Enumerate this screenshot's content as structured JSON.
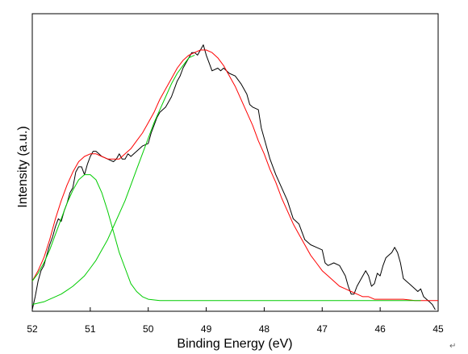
{
  "chart_data": {
    "type": "line",
    "title": "",
    "xlabel": "Binding Energy (eV)",
    "ylabel": "Intensity (a.u.)",
    "xlim": [
      52,
      45
    ],
    "x_reversed": true,
    "ylim": [
      0,
      1
    ],
    "y_ticks_shown": false,
    "grid": false,
    "legend": "none",
    "x_ticks": [
      "52",
      "51",
      "50",
      "49",
      "48",
      "47",
      "46",
      "45"
    ],
    "series": [
      {
        "color": "#000000",
        "points": [
          [
            52.0,
            0.0
          ],
          [
            51.95,
            0.05
          ],
          [
            51.9,
            0.11
          ],
          [
            51.85,
            0.15
          ],
          [
            51.8,
            0.17
          ],
          [
            51.75,
            0.21
          ],
          [
            51.7,
            0.25
          ],
          [
            51.65,
            0.28
          ],
          [
            51.6,
            0.32
          ],
          [
            51.55,
            0.35
          ],
          [
            51.5,
            0.34
          ],
          [
            51.45,
            0.38
          ],
          [
            51.4,
            0.41
          ],
          [
            51.35,
            0.45
          ],
          [
            51.3,
            0.47
          ],
          [
            51.25,
            0.53
          ],
          [
            51.2,
            0.55
          ],
          [
            51.15,
            0.55
          ],
          [
            51.1,
            0.52
          ],
          [
            51.05,
            0.56
          ],
          [
            51.0,
            0.59
          ],
          [
            50.95,
            0.61
          ],
          [
            50.9,
            0.61
          ],
          [
            50.85,
            0.6
          ],
          [
            50.8,
            0.59
          ],
          [
            50.7,
            0.58
          ],
          [
            50.6,
            0.57
          ],
          [
            50.55,
            0.58
          ],
          [
            50.5,
            0.6
          ],
          [
            50.45,
            0.58
          ],
          [
            50.4,
            0.58
          ],
          [
            50.35,
            0.6
          ],
          [
            50.3,
            0.59
          ],
          [
            50.2,
            0.61
          ],
          [
            50.1,
            0.63
          ],
          [
            50.0,
            0.64
          ],
          [
            49.95,
            0.68
          ],
          [
            49.9,
            0.71
          ],
          [
            49.85,
            0.74
          ],
          [
            49.8,
            0.76
          ],
          [
            49.7,
            0.78
          ],
          [
            49.6,
            0.82
          ],
          [
            49.5,
            0.88
          ],
          [
            49.45,
            0.9
          ],
          [
            49.4,
            0.93
          ],
          [
            49.3,
            0.97
          ],
          [
            49.25,
            0.99
          ],
          [
            49.2,
            0.99
          ],
          [
            49.15,
            0.98
          ],
          [
            49.1,
            1.0
          ],
          [
            49.05,
            1.02
          ],
          [
            49.0,
            0.98
          ],
          [
            48.95,
            0.95
          ],
          [
            48.9,
            0.92
          ],
          [
            48.8,
            0.93
          ],
          [
            48.75,
            0.92
          ],
          [
            48.7,
            0.93
          ],
          [
            48.65,
            0.92
          ],
          [
            48.6,
            0.91
          ],
          [
            48.5,
            0.9
          ],
          [
            48.4,
            0.87
          ],
          [
            48.3,
            0.83
          ],
          [
            48.25,
            0.79
          ],
          [
            48.2,
            0.78
          ],
          [
            48.1,
            0.77
          ],
          [
            48.05,
            0.7
          ],
          [
            48.0,
            0.66
          ],
          [
            47.95,
            0.62
          ],
          [
            47.9,
            0.58
          ],
          [
            47.8,
            0.52
          ],
          [
            47.7,
            0.47
          ],
          [
            47.6,
            0.42
          ],
          [
            47.5,
            0.35
          ],
          [
            47.4,
            0.33
          ],
          [
            47.35,
            0.3
          ],
          [
            47.3,
            0.27
          ],
          [
            47.2,
            0.25
          ],
          [
            47.1,
            0.24
          ],
          [
            47.0,
            0.23
          ],
          [
            46.95,
            0.18
          ],
          [
            46.9,
            0.17
          ],
          [
            46.8,
            0.18
          ],
          [
            46.7,
            0.17
          ],
          [
            46.6,
            0.13
          ],
          [
            46.55,
            0.09
          ],
          [
            46.5,
            0.06
          ],
          [
            46.45,
            0.06
          ],
          [
            46.4,
            0.09
          ],
          [
            46.3,
            0.13
          ],
          [
            46.25,
            0.15
          ],
          [
            46.2,
            0.13
          ],
          [
            46.15,
            0.09
          ],
          [
            46.1,
            0.1
          ],
          [
            46.05,
            0.14
          ],
          [
            46.0,
            0.13
          ],
          [
            45.95,
            0.17
          ],
          [
            45.9,
            0.2
          ],
          [
            45.85,
            0.21
          ],
          [
            45.8,
            0.22
          ],
          [
            45.75,
            0.24
          ],
          [
            45.7,
            0.22
          ],
          [
            45.65,
            0.18
          ],
          [
            45.6,
            0.12
          ],
          [
            45.55,
            0.11
          ],
          [
            45.5,
            0.1
          ],
          [
            45.45,
            0.09
          ],
          [
            45.4,
            0.08
          ],
          [
            45.35,
            0.07
          ],
          [
            45.3,
            0.08
          ],
          [
            45.25,
            0.05
          ],
          [
            45.2,
            0.04
          ],
          [
            45.15,
            0.03
          ],
          [
            45.1,
            0.02
          ],
          [
            45.05,
            0.0
          ]
        ]
      },
      {
        "color": "#ff0000",
        "points": [
          [
            52.0,
            0.11
          ],
          [
            51.9,
            0.15
          ],
          [
            51.8,
            0.2
          ],
          [
            51.7,
            0.27
          ],
          [
            51.6,
            0.35
          ],
          [
            51.5,
            0.42
          ],
          [
            51.4,
            0.48
          ],
          [
            51.3,
            0.53
          ],
          [
            51.2,
            0.57
          ],
          [
            51.1,
            0.59
          ],
          [
            51.0,
            0.6
          ],
          [
            50.9,
            0.6
          ],
          [
            50.8,
            0.59
          ],
          [
            50.7,
            0.58
          ],
          [
            50.6,
            0.58
          ],
          [
            50.5,
            0.58
          ],
          [
            50.4,
            0.6
          ],
          [
            50.3,
            0.62
          ],
          [
            50.2,
            0.65
          ],
          [
            50.1,
            0.68
          ],
          [
            50.0,
            0.72
          ],
          [
            49.9,
            0.76
          ],
          [
            49.8,
            0.81
          ],
          [
            49.7,
            0.85
          ],
          [
            49.6,
            0.89
          ],
          [
            49.5,
            0.93
          ],
          [
            49.4,
            0.96
          ],
          [
            49.3,
            0.98
          ],
          [
            49.2,
            0.99
          ],
          [
            49.1,
            1.0
          ],
          [
            49.0,
            1.0
          ],
          [
            48.9,
            0.99
          ],
          [
            48.8,
            0.97
          ],
          [
            48.7,
            0.94
          ],
          [
            48.6,
            0.9
          ],
          [
            48.5,
            0.86
          ],
          [
            48.4,
            0.81
          ],
          [
            48.3,
            0.76
          ],
          [
            48.2,
            0.71
          ],
          [
            48.1,
            0.65
          ],
          [
            48.0,
            0.6
          ],
          [
            47.9,
            0.54
          ],
          [
            47.8,
            0.49
          ],
          [
            47.7,
            0.43
          ],
          [
            47.6,
            0.38
          ],
          [
            47.5,
            0.33
          ],
          [
            47.4,
            0.29
          ],
          [
            47.3,
            0.25
          ],
          [
            47.2,
            0.21
          ],
          [
            47.1,
            0.18
          ],
          [
            47.0,
            0.15
          ],
          [
            46.9,
            0.13
          ],
          [
            46.8,
            0.11
          ],
          [
            46.7,
            0.09
          ],
          [
            46.6,
            0.08
          ],
          [
            46.5,
            0.07
          ],
          [
            46.4,
            0.06
          ],
          [
            46.3,
            0.05
          ],
          [
            46.2,
            0.05
          ],
          [
            46.1,
            0.04
          ],
          [
            46.0,
            0.04
          ],
          [
            45.8,
            0.04
          ],
          [
            45.6,
            0.04
          ],
          [
            45.4,
            0.035
          ],
          [
            45.2,
            0.035
          ],
          [
            45.0,
            0.035
          ]
        ]
      },
      {
        "color": "#00cc00",
        "points": [
          [
            52.0,
            0.11
          ],
          [
            51.9,
            0.14
          ],
          [
            51.8,
            0.18
          ],
          [
            51.7,
            0.23
          ],
          [
            51.6,
            0.29
          ],
          [
            51.5,
            0.35
          ],
          [
            51.4,
            0.41
          ],
          [
            51.3,
            0.46
          ],
          [
            51.2,
            0.5
          ],
          [
            51.1,
            0.52
          ],
          [
            51.0,
            0.52
          ],
          [
            50.9,
            0.5
          ],
          [
            50.8,
            0.45
          ],
          [
            50.7,
            0.38
          ],
          [
            50.6,
            0.3
          ],
          [
            50.5,
            0.22
          ],
          [
            50.4,
            0.16
          ],
          [
            50.3,
            0.1
          ],
          [
            50.2,
            0.07
          ],
          [
            50.1,
            0.05
          ],
          [
            50.0,
            0.04
          ],
          [
            49.8,
            0.035
          ],
          [
            49.5,
            0.035
          ],
          [
            49.0,
            0.035
          ],
          [
            48.5,
            0.035
          ],
          [
            48.0,
            0.035
          ],
          [
            47.5,
            0.035
          ],
          [
            47.0,
            0.035
          ],
          [
            46.5,
            0.035
          ],
          [
            46.0,
            0.035
          ],
          [
            45.5,
            0.035
          ],
          [
            45.3,
            0.035
          ]
        ]
      },
      {
        "color": "#00cc00",
        "points": [
          [
            52.0,
            0.02
          ],
          [
            51.9,
            0.025
          ],
          [
            51.8,
            0.03
          ],
          [
            51.7,
            0.04
          ],
          [
            51.6,
            0.05
          ],
          [
            51.5,
            0.06
          ],
          [
            51.4,
            0.075
          ],
          [
            51.3,
            0.09
          ],
          [
            51.2,
            0.11
          ],
          [
            51.1,
            0.13
          ],
          [
            51.0,
            0.16
          ],
          [
            50.9,
            0.19
          ],
          [
            50.8,
            0.23
          ],
          [
            50.7,
            0.27
          ],
          [
            50.6,
            0.32
          ],
          [
            50.5,
            0.37
          ],
          [
            50.4,
            0.42
          ],
          [
            50.3,
            0.48
          ],
          [
            50.2,
            0.54
          ],
          [
            50.1,
            0.6
          ],
          [
            50.0,
            0.66
          ],
          [
            49.9,
            0.72
          ],
          [
            49.8,
            0.77
          ],
          [
            49.7,
            0.82
          ],
          [
            49.6,
            0.87
          ],
          [
            49.5,
            0.91
          ],
          [
            49.4,
            0.94
          ],
          [
            49.3,
            0.97
          ],
          [
            49.2,
            0.98
          ]
        ]
      }
    ]
  },
  "footer": {
    "return_mark": "↵"
  }
}
